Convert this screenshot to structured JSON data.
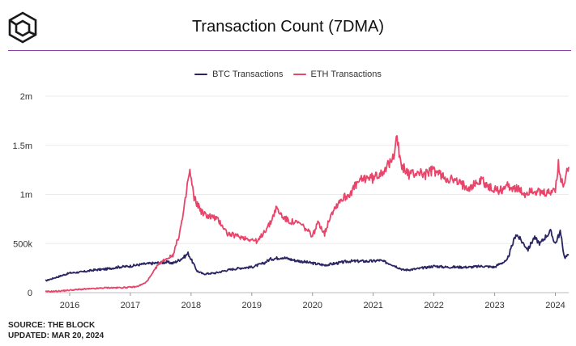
{
  "header": {
    "logo_icon": "the-block-cube-logo",
    "title": "Transaction Count (7DMA)",
    "rule_color": "#8a3fa8"
  },
  "footer": {
    "source": "SOURCE: THE BLOCK",
    "updated": "UPDATED: MAR 20, 2024"
  },
  "chart_data": {
    "type": "line",
    "title": "Transaction Count (7DMA)",
    "xlabel": "",
    "ylabel": "",
    "x_ticks": [
      "2016",
      "2017",
      "2018",
      "2019",
      "2020",
      "2021",
      "2022",
      "2023",
      "2024"
    ],
    "y_ticks": [
      "0",
      "500k",
      "1m",
      "1.5m",
      "2m"
    ],
    "ylim": [
      0,
      2000000
    ],
    "xlim": [
      2015.6,
      2024.22
    ],
    "grid": true,
    "legend_position": "top-center",
    "series": [
      {
        "name": "BTC Transactions",
        "color": "#2a2560",
        "points": [
          [
            2015.6,
            120000
          ],
          [
            2015.75,
            150000
          ],
          [
            2015.9,
            180000
          ],
          [
            2016.0,
            200000
          ],
          [
            2016.2,
            210000
          ],
          [
            2016.4,
            230000
          ],
          [
            2016.6,
            240000
          ],
          [
            2016.8,
            260000
          ],
          [
            2017.0,
            270000
          ],
          [
            2017.2,
            290000
          ],
          [
            2017.4,
            300000
          ],
          [
            2017.6,
            310000
          ],
          [
            2017.7,
            300000
          ],
          [
            2017.8,
            330000
          ],
          [
            2017.9,
            370000
          ],
          [
            2017.95,
            400000
          ],
          [
            2018.0,
            340000
          ],
          [
            2018.1,
            220000
          ],
          [
            2018.2,
            190000
          ],
          [
            2018.4,
            200000
          ],
          [
            2018.6,
            230000
          ],
          [
            2018.8,
            250000
          ],
          [
            2019.0,
            260000
          ],
          [
            2019.2,
            300000
          ],
          [
            2019.3,
            340000
          ],
          [
            2019.5,
            360000
          ],
          [
            2019.7,
            330000
          ],
          [
            2019.9,
            310000
          ],
          [
            2020.0,
            300000
          ],
          [
            2020.2,
            280000
          ],
          [
            2020.4,
            300000
          ],
          [
            2020.6,
            320000
          ],
          [
            2020.8,
            320000
          ],
          [
            2021.0,
            320000
          ],
          [
            2021.1,
            330000
          ],
          [
            2021.3,
            290000
          ],
          [
            2021.5,
            230000
          ],
          [
            2021.7,
            240000
          ],
          [
            2021.9,
            260000
          ],
          [
            2022.0,
            270000
          ],
          [
            2022.2,
            260000
          ],
          [
            2022.4,
            260000
          ],
          [
            2022.6,
            260000
          ],
          [
            2022.8,
            270000
          ],
          [
            2023.0,
            260000
          ],
          [
            2023.1,
            300000
          ],
          [
            2023.2,
            320000
          ],
          [
            2023.3,
            500000
          ],
          [
            2023.35,
            600000
          ],
          [
            2023.45,
            520000
          ],
          [
            2023.55,
            440000
          ],
          [
            2023.65,
            560000
          ],
          [
            2023.75,
            500000
          ],
          [
            2023.85,
            580000
          ],
          [
            2023.92,
            620000
          ],
          [
            2024.0,
            500000
          ],
          [
            2024.08,
            620000
          ],
          [
            2024.15,
            360000
          ],
          [
            2024.22,
            380000
          ]
        ]
      },
      {
        "name": "ETH Transactions",
        "color": "#e8456b",
        "points": [
          [
            2015.6,
            10000
          ],
          [
            2015.8,
            15000
          ],
          [
            2016.0,
            25000
          ],
          [
            2016.2,
            35000
          ],
          [
            2016.4,
            40000
          ],
          [
            2016.6,
            50000
          ],
          [
            2016.8,
            50000
          ],
          [
            2017.0,
            55000
          ],
          [
            2017.1,
            60000
          ],
          [
            2017.25,
            100000
          ],
          [
            2017.35,
            180000
          ],
          [
            2017.45,
            280000
          ],
          [
            2017.55,
            330000
          ],
          [
            2017.7,
            380000
          ],
          [
            2017.8,
            580000
          ],
          [
            2017.88,
            820000
          ],
          [
            2017.95,
            1150000
          ],
          [
            2017.98,
            1230000
          ],
          [
            2018.05,
            960000
          ],
          [
            2018.2,
            800000
          ],
          [
            2018.3,
            780000
          ],
          [
            2018.4,
            760000
          ],
          [
            2018.5,
            700000
          ],
          [
            2018.6,
            600000
          ],
          [
            2018.8,
            570000
          ],
          [
            2019.0,
            540000
          ],
          [
            2019.1,
            520000
          ],
          [
            2019.2,
            620000
          ],
          [
            2019.3,
            700000
          ],
          [
            2019.4,
            860000
          ],
          [
            2019.5,
            780000
          ],
          [
            2019.6,
            730000
          ],
          [
            2019.8,
            700000
          ],
          [
            2019.9,
            640000
          ],
          [
            2020.0,
            580000
          ],
          [
            2020.1,
            720000
          ],
          [
            2020.2,
            600000
          ],
          [
            2020.3,
            800000
          ],
          [
            2020.45,
            940000
          ],
          [
            2020.6,
            1000000
          ],
          [
            2020.75,
            1120000
          ],
          [
            2020.9,
            1180000
          ],
          [
            2021.0,
            1160000
          ],
          [
            2021.15,
            1240000
          ],
          [
            2021.3,
            1320000
          ],
          [
            2021.35,
            1450000
          ],
          [
            2021.38,
            1650000
          ],
          [
            2021.45,
            1300000
          ],
          [
            2021.6,
            1200000
          ],
          [
            2021.75,
            1230000
          ],
          [
            2021.85,
            1200000
          ],
          [
            2022.0,
            1250000
          ],
          [
            2022.15,
            1180000
          ],
          [
            2022.3,
            1150000
          ],
          [
            2022.45,
            1100000
          ],
          [
            2022.6,
            1080000
          ],
          [
            2022.8,
            1150000
          ],
          [
            2022.9,
            1070000
          ],
          [
            2023.0,
            1050000
          ],
          [
            2023.1,
            1040000
          ],
          [
            2023.2,
            1090000
          ],
          [
            2023.35,
            1060000
          ],
          [
            2023.5,
            1000000
          ],
          [
            2023.6,
            1050000
          ],
          [
            2023.75,
            1010000
          ],
          [
            2023.9,
            1010000
          ],
          [
            2024.0,
            1060000
          ],
          [
            2024.05,
            1300000
          ],
          [
            2024.08,
            1160000
          ],
          [
            2024.13,
            1100000
          ],
          [
            2024.18,
            1200000
          ],
          [
            2024.22,
            1280000
          ]
        ]
      }
    ]
  }
}
